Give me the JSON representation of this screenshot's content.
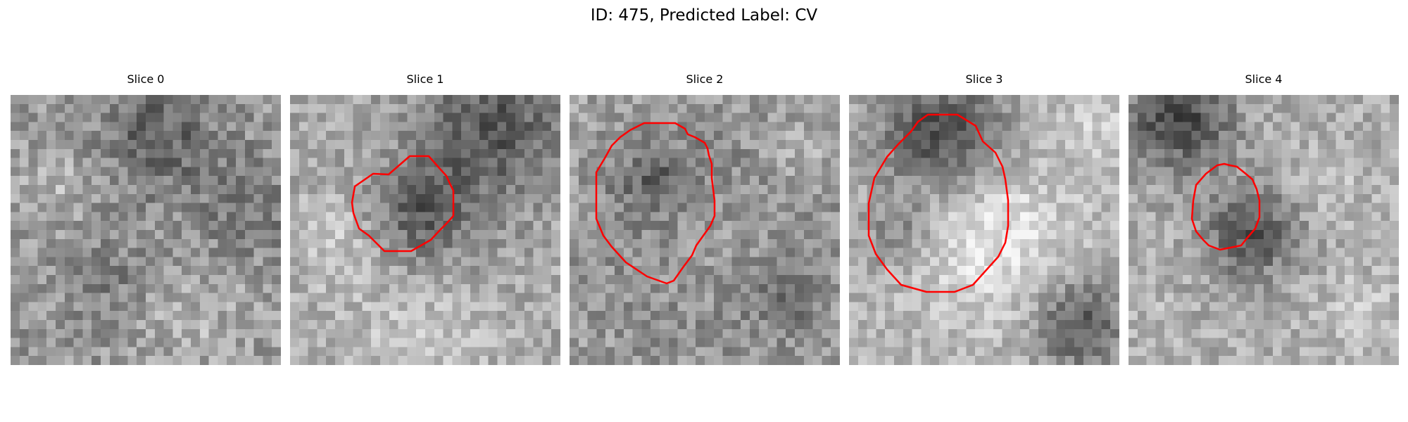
{
  "figure": {
    "title": "ID: 475, Predicted Label: CV"
  },
  "slices": [
    {
      "label": "Slice 0",
      "has_contour": false,
      "contour_color": "#ff0000"
    },
    {
      "label": "Slice 1",
      "has_contour": true,
      "contour_color": "#ff0000"
    },
    {
      "label": "Slice 2",
      "has_contour": true,
      "contour_color": "#ff0000"
    },
    {
      "label": "Slice 3",
      "has_contour": true,
      "contour_color": "#ff0000"
    },
    {
      "label": "Slice 4",
      "has_contour": true,
      "contour_color": "#ff0000"
    }
  ],
  "colors": {
    "background": "#ffffff",
    "contour": "#ff0000"
  }
}
